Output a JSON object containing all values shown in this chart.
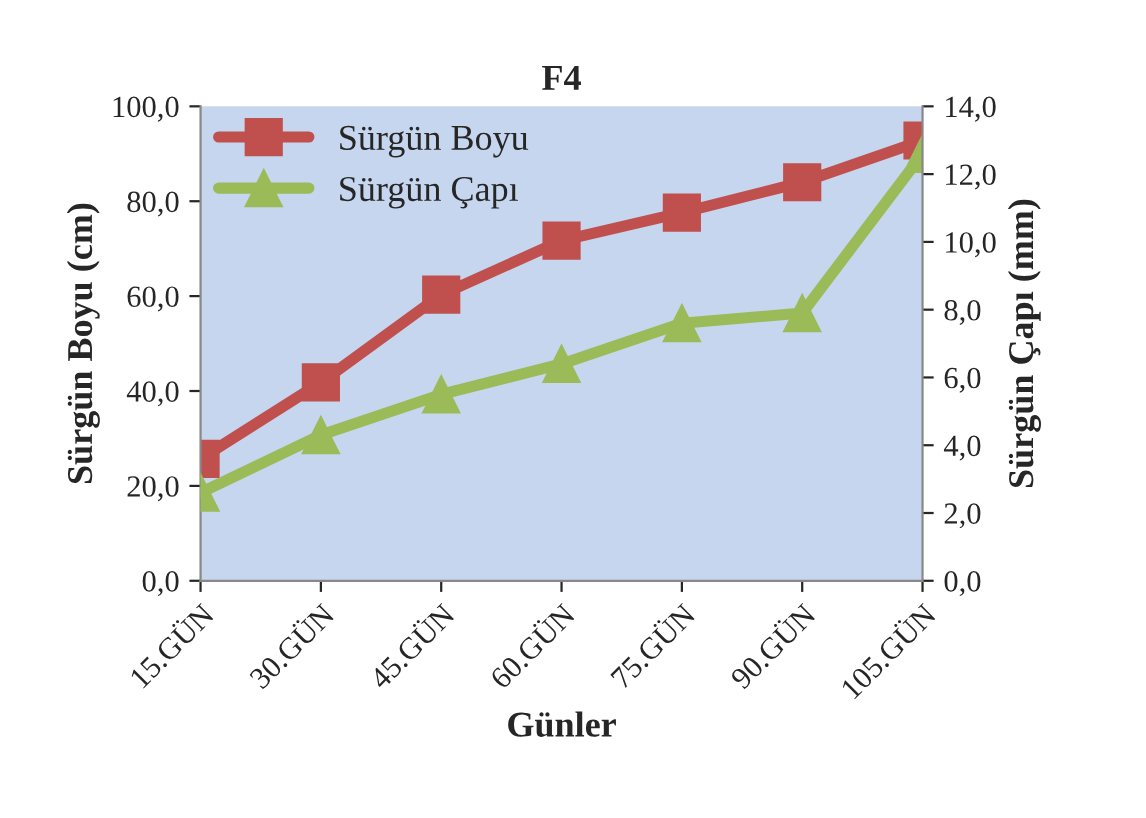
{
  "chart_data": {
    "type": "line",
    "title": "F4",
    "xlabel": "Günler",
    "ylabel": "Sürgün Boyu (cm)",
    "y2label": "Sürgün Çapı (mm)",
    "categories": [
      "15.GÜN",
      "30.GÜN",
      "45.GÜN",
      "60.GÜN",
      "75.GÜN",
      "90.GÜN",
      "105.GÜN"
    ],
    "series": [
      {
        "name": "Sürgün Boyu",
        "color": "#c0504d",
        "marker": "square",
        "values": [
          25.7,
          41.8,
          60.3,
          71.7,
          77.6,
          84.0,
          92.8
        ]
      },
      {
        "name": "Sürgün Çapı",
        "color": "#9bbb59",
        "marker": "triangle",
        "axis": "y2",
        "values": [
          2.6,
          4.3,
          5.5,
          6.4,
          7.6,
          7.9,
          12.6
        ]
      }
    ],
    "ylim": [
      0,
      100
    ],
    "yticks": [
      {
        "value": 0,
        "label": "0,0"
      },
      {
        "value": 20,
        "label": "20,0"
      },
      {
        "value": 40,
        "label": "40,0"
      },
      {
        "value": 60,
        "label": "60,0"
      },
      {
        "value": 80,
        "label": "80,0"
      },
      {
        "value": 100,
        "label": "100,0"
      }
    ],
    "y2lim": [
      0,
      14
    ],
    "y2ticks": [
      {
        "value": 0,
        "label": "0,0"
      },
      {
        "value": 2,
        "label": "2,0"
      },
      {
        "value": 4,
        "label": "4,0"
      },
      {
        "value": 6,
        "label": "6,0"
      },
      {
        "value": 8,
        "label": "8,0"
      },
      {
        "value": 10,
        "label": "10,0"
      },
      {
        "value": 12,
        "label": "12,0"
      },
      {
        "value": 14,
        "label": "14,0"
      }
    ],
    "legend": "top left",
    "grid": false,
    "line_style": "solid"
  }
}
